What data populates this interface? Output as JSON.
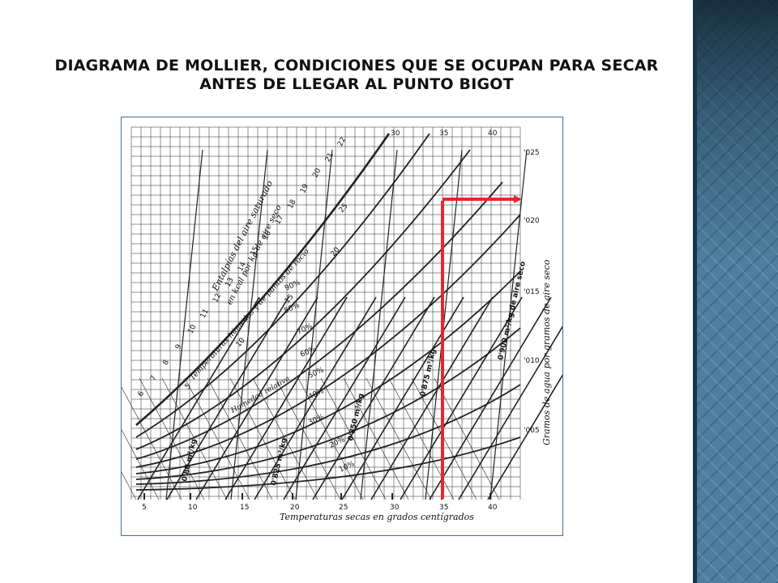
{
  "slide": {
    "title": "DIAGRAMA DE MOLLIER, CONDICIONES QUE SE OCUPAN PARA SECAR ANTES DE LLEGAR AL PUNTO BIGOT"
  },
  "diagram": {
    "x_axis_label": "Temperaturas  secas  en grados  centígrados",
    "x_ticks": [
      "5",
      "10",
      "15",
      "20",
      "25",
      "30",
      "35",
      "40"
    ],
    "top_ticks": [
      "30",
      "35",
      "40"
    ],
    "right_axis_label": "Gramos  de  agua  por  gramos  de  aire  seco",
    "right_ticks": [
      "'025",
      "'020",
      "'015",
      "'010",
      "'005"
    ],
    "enthalpy_label_1": "Entalpías  del  aire  saturado",
    "enthalpy_label_2": "en  kcal  por  kg  de  aire  seco",
    "enthalpy_ticks": [
      "6",
      "7",
      "8",
      "9",
      "10",
      "11",
      "12",
      "13",
      "14",
      "15",
      "16",
      "17",
      "18",
      "19",
      "20",
      "21",
      "22"
    ],
    "wet_temp_label": "Temperaturas  húmedas  y  de  puntos de rocío",
    "wet_temp_ticks": [
      "5",
      "10",
      "15",
      "20",
      "25"
    ],
    "humidity_label": "Humedad relativa",
    "humidity_ticks": [
      "10%",
      "20%",
      "30%",
      "40%",
      "50%",
      "60%",
      "70%",
      "80%",
      "90%"
    ],
    "volume_labels": [
      "0'80 m³/kg",
      "0'825 m³/kg",
      "0'850 m³/kg",
      "0'875 m³/kg",
      "0'900 m³/kg de aire seco"
    ],
    "colors": {
      "grid": "#222222",
      "highlight": "#e8262b",
      "sidebar": "#4d7fa0",
      "frame_border": "#3f6f95"
    }
  }
}
